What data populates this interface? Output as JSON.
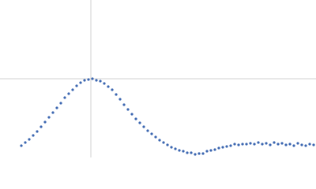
{
  "chart_data": {
    "type": "scatter",
    "color": "#3d67b1",
    "xlim": [
      0,
      400
    ],
    "ylim": [
      0,
      200
    ],
    "vline": 115,
    "hline": 100,
    "x": [
      27,
      32,
      37,
      42,
      47,
      52,
      57,
      62,
      67,
      72,
      77,
      82,
      87,
      92,
      97,
      102,
      107,
      112,
      117,
      122,
      127,
      132,
      137,
      142,
      147,
      152,
      157,
      162,
      167,
      172,
      177,
      182,
      187,
      192,
      197,
      202,
      207,
      212,
      217,
      222,
      227,
      232,
      237,
      242,
      247,
      252,
      257,
      262,
      267,
      272,
      277,
      282,
      287,
      292,
      297,
      302,
      307,
      312,
      317,
      322,
      327,
      332,
      337,
      342,
      347,
      352,
      357,
      362,
      367,
      372,
      377,
      382,
      387,
      392,
      397
    ],
    "values": [
      15,
      19,
      23,
      28,
      33,
      39,
      45,
      51,
      57,
      63,
      69,
      76,
      81,
      86,
      91,
      95,
      98,
      99,
      100,
      98,
      97,
      94,
      90,
      86,
      80,
      74,
      67,
      61,
      55,
      49,
      44,
      39,
      34,
      30,
      26,
      22,
      19,
      16,
      13,
      11,
      9,
      8,
      6,
      6,
      4,
      5,
      5,
      8,
      9,
      10,
      12,
      13,
      14,
      15,
      17,
      16,
      17,
      17,
      18,
      17,
      19,
      17,
      18,
      16,
      19,
      17,
      18,
      16,
      17,
      15,
      18,
      16,
      15,
      17,
      16
    ]
  }
}
